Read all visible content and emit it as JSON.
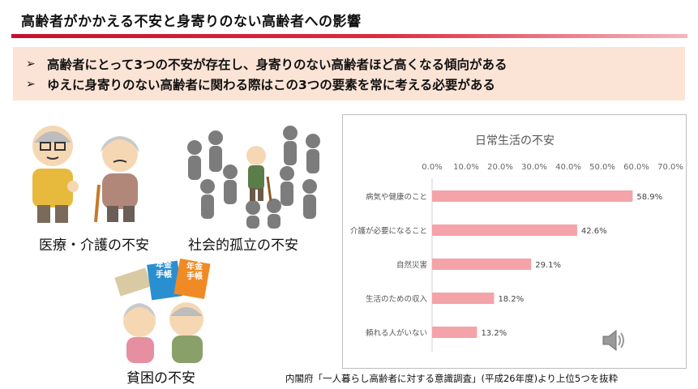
{
  "title": "高齢者がかかえる不安と身寄りのない高齢者への影響",
  "banner": {
    "lines": [
      "高齢者にとって3つの不安が存在し、身寄りのない高齢者ほど高くなる傾向がある",
      "ゆえに身寄りのない高齢者に関わる際はこの3つの要素を常に考える必要がある"
    ]
  },
  "illustrations": {
    "medical_caption": "医療・介護の不安",
    "isolation_caption": "社会的孤立の不安",
    "poverty_caption": "貧困の不安",
    "pension_book_label_line1": "年金",
    "pension_book_label_line2": "手帳"
  },
  "chart_data": {
    "type": "bar",
    "orientation": "horizontal",
    "title": "日常生活の不安",
    "categories": [
      "病気や健康のこと",
      "介護が必要になること",
      "自然災害",
      "生活のための収入",
      "頼れる人がいない"
    ],
    "values": [
      58.9,
      42.6,
      29.1,
      18.2,
      13.2
    ],
    "value_labels": [
      "58.9%",
      "42.6%",
      "29.1%",
      "18.2%",
      "13.2%"
    ],
    "xlim": [
      0,
      70
    ],
    "xticks": [
      "0.0%",
      "10.0%",
      "20.0%",
      "30.0%",
      "40.0%",
      "50.0%",
      "60.0%",
      "70.0%"
    ],
    "bar_color": "#f4a3a8",
    "axis_position": "top",
    "grid": false
  },
  "source": "内閣府「一人暮らし高齢者に対する意識調査」(平成26年度)より上位5つを抜粋",
  "colors": {
    "accent": "#c8102e",
    "banner_bg": "#fbe4d6",
    "bar": "#f4a3a8"
  },
  "icons": {
    "speaker": "speaker-icon",
    "arrow": "arrow-right-icon"
  }
}
